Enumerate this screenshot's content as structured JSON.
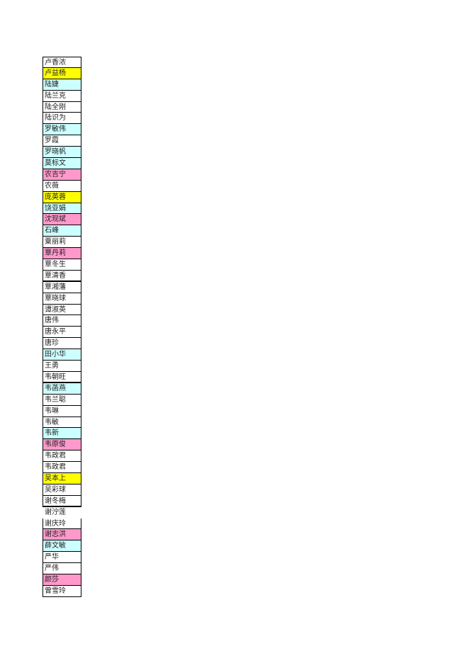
{
  "colors": {
    "white": "#ffffff",
    "yellow": "#ffff00",
    "cyan": "#ccffff",
    "pink": "#ff99cc"
  },
  "rows": [
    {
      "name": "卢香浓",
      "fill": "white"
    },
    {
      "name": "卢益杨",
      "fill": "yellow"
    },
    {
      "name": "陆婕",
      "fill": "cyan"
    },
    {
      "name": "陆兰克",
      "fill": "white"
    },
    {
      "name": "陆全刚",
      "fill": "white"
    },
    {
      "name": "陆识为",
      "fill": "white"
    },
    {
      "name": "罗敏伟",
      "fill": "cyan"
    },
    {
      "name": "罗霞",
      "fill": "white"
    },
    {
      "name": "罗晓帆",
      "fill": "cyan"
    },
    {
      "name": "莫标文",
      "fill": "cyan"
    },
    {
      "name": "农吉宁",
      "fill": "pink"
    },
    {
      "name": "农薇",
      "fill": "white"
    },
    {
      "name": "庞英蓉",
      "fill": "yellow"
    },
    {
      "name": "饶亚娟",
      "fill": "cyan"
    },
    {
      "name": "沈现斌",
      "fill": "pink"
    },
    {
      "name": "石峰",
      "fill": "cyan"
    },
    {
      "name": "粟丽莉",
      "fill": "white"
    },
    {
      "name": "覃丹莉",
      "fill": "pink"
    },
    {
      "name": "覃冬生",
      "fill": "white"
    },
    {
      "name": "覃清香",
      "fill": "white"
    },
    {
      "name": "覃湘藩",
      "fill": "white"
    },
    {
      "name": "覃晓球",
      "fill": "white"
    },
    {
      "name": "谭淑英",
      "fill": "white"
    },
    {
      "name": "唐伟",
      "fill": "white"
    },
    {
      "name": "唐永平",
      "fill": "white"
    },
    {
      "name": "唐珍",
      "fill": "white"
    },
    {
      "name": "田小华",
      "fill": "cyan"
    },
    {
      "name": "王勇",
      "fill": "white"
    },
    {
      "name": "韦朝旺",
      "fill": "white"
    },
    {
      "name": "韦菡燕",
      "fill": "cyan"
    },
    {
      "name": "韦兰聪",
      "fill": "white"
    },
    {
      "name": "韦琳",
      "fill": "white"
    },
    {
      "name": "韦敏",
      "fill": "white"
    },
    {
      "name": "韦新",
      "fill": "cyan"
    },
    {
      "name": "韦原俊",
      "fill": "pink"
    },
    {
      "name": "韦政君",
      "fill": "white"
    },
    {
      "name": "韦政君",
      "fill": "white"
    },
    {
      "name": "吴本上",
      "fill": "yellow"
    },
    {
      "name": "吴彩球",
      "fill": "white"
    },
    {
      "name": "谢冬梅",
      "fill": "white"
    },
    {
      "name": "谢泞莲",
      "fill": "none"
    },
    {
      "name": "谢庆玲",
      "fill": "white"
    },
    {
      "name": "谢志洪",
      "fill": "pink"
    },
    {
      "name": "薛文敏",
      "fill": "cyan"
    },
    {
      "name": "严华",
      "fill": "white"
    },
    {
      "name": "严伟",
      "fill": "white"
    },
    {
      "name": "颜莎",
      "fill": "pink"
    },
    {
      "name": "曾雪玲",
      "fill": "white"
    }
  ]
}
